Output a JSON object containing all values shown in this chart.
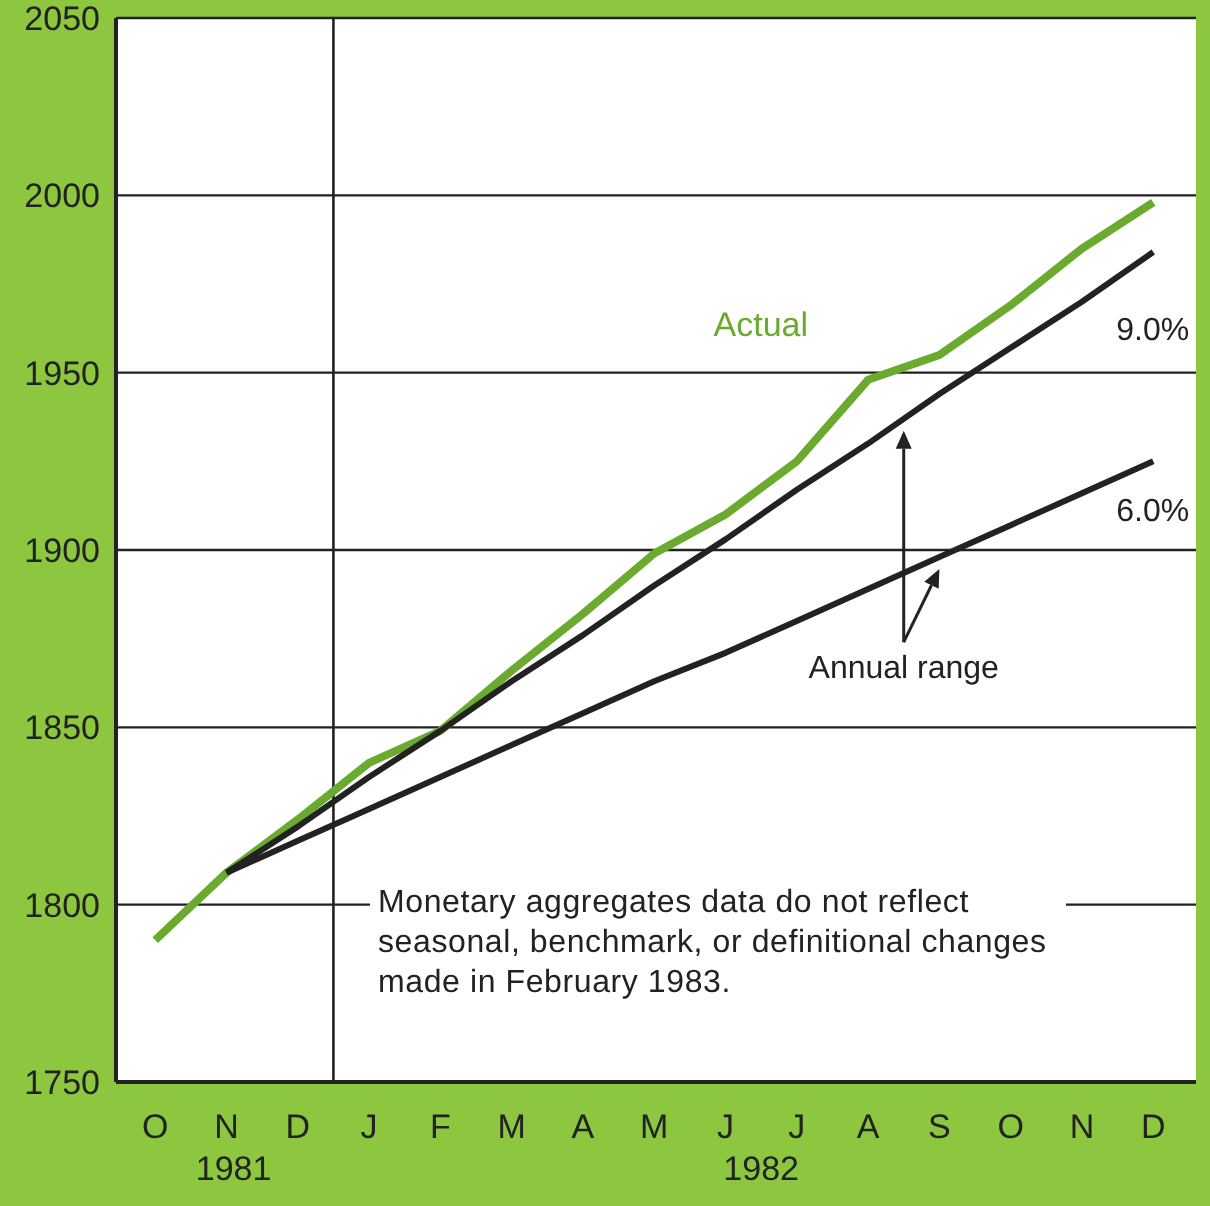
{
  "chart_data": {
    "type": "line",
    "categories": [
      "O",
      "N",
      "D",
      "J",
      "F",
      "M",
      "A",
      "M",
      "J",
      "J",
      "A",
      "S",
      "O",
      "N",
      "D"
    ],
    "ylim": [
      1750,
      2050
    ],
    "yticks": [
      1750,
      1800,
      1850,
      1900,
      1950,
      2000,
      2050
    ],
    "grid": "y",
    "series": [
      {
        "name": "Actual",
        "color": "#6aaa2e",
        "values": [
          1790,
          1809,
          1824,
          1840,
          1849,
          1866,
          1882,
          1899,
          1910,
          1925,
          1948,
          1955,
          1969,
          1985,
          1998
        ]
      },
      {
        "name": "9.0%",
        "color": "#222222",
        "values": [
          null,
          1809,
          1822,
          1836,
          1849,
          1863,
          1876,
          1890,
          1903,
          1917,
          1930,
          1944,
          1957,
          1970,
          1984
        ]
      },
      {
        "name": "6.0%",
        "color": "#222222",
        "values": [
          null,
          1809,
          1818,
          1827,
          1836,
          1845,
          1854,
          1863,
          1871,
          1880,
          1889,
          1898,
          1907,
          1916,
          1925
        ]
      }
    ],
    "annotations": [
      "Annual range",
      "Monetary aggregates data do not reflect seasonal, benchmark, or definitional changes made in February 1983.",
      "1981",
      "1982"
    ]
  }
}
